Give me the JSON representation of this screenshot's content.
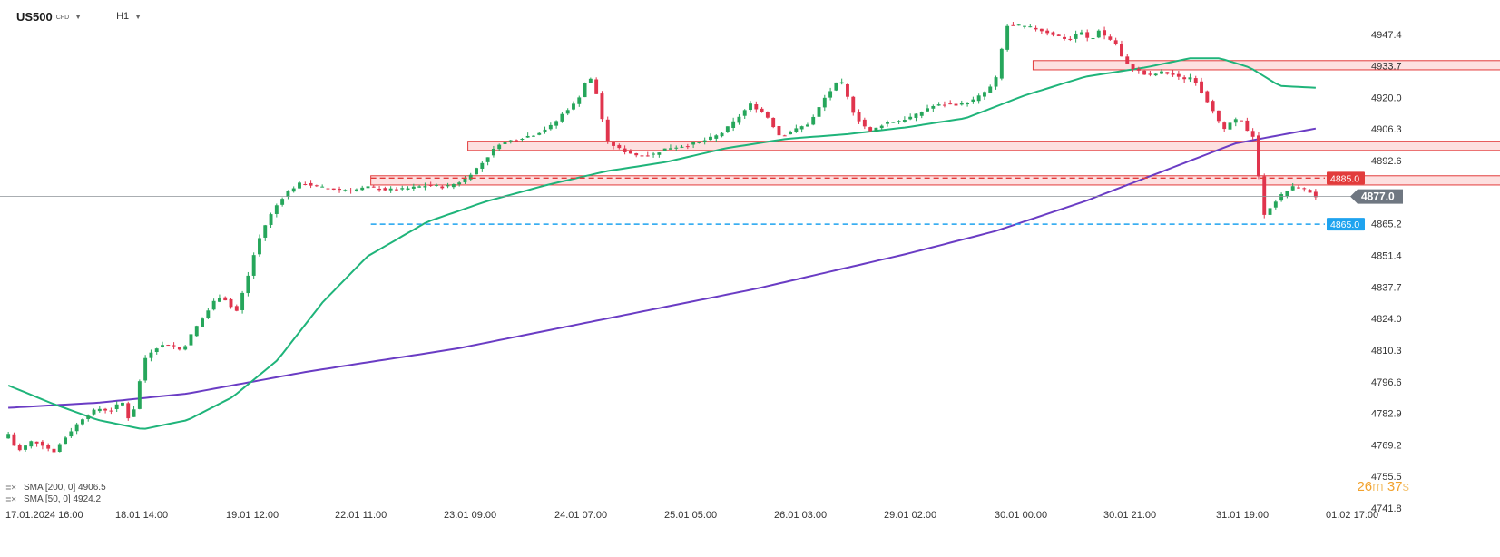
{
  "header": {
    "symbol": "US500",
    "instrument_type": "CFD",
    "timeframe": "H1"
  },
  "indicators": [
    {
      "label": "SMA [200, 0]",
      "value": "4906.5",
      "color": "#6a3cc4"
    },
    {
      "label": "SMA [50, 0]",
      "value": "4924.2",
      "color": "#1fb47a"
    }
  ],
  "countdown": {
    "minutes": "26",
    "m_unit": "m",
    "seconds": "37",
    "s_unit": "s"
  },
  "price_tags": {
    "last": "4877.0",
    "resistance": "4885.0",
    "support": "4865.0"
  },
  "colors": {
    "up": "#26a65b",
    "down": "#e0344d",
    "sma200": "#6a3cc4",
    "sma50": "#1fb47a",
    "zone_fill": "#fcd6d6",
    "zone_stroke": "#e23b3b",
    "support_line": "#1fa3ef",
    "last_tag": "#6f7781"
  },
  "chart_data": {
    "type": "candlestick",
    "y_ticks": [
      "4947.4",
      "4933.7",
      "4920.0",
      "4906.3",
      "4892.6",
      "4865.2",
      "4851.4",
      "4837.7",
      "4824.0",
      "4810.3",
      "4796.6",
      "4782.9",
      "4769.2",
      "4755.5",
      "4741.8"
    ],
    "ylim": [
      4741.8,
      4956
    ],
    "x_ticks": [
      "17.01.2024  16:00",
      "18.01  14:00",
      "19.01  12:00",
      "22.01  11:00",
      "23.01  09:00",
      "24.01  07:00",
      "25.01  05:00",
      "26.01  03:00",
      "29.01  02:00",
      "30.01  00:00",
      "30.01  21:00",
      "31.01  19:00",
      "01.02  17:00"
    ],
    "bar_count": 230,
    "close_anchors": [
      [
        0,
        4774
      ],
      [
        3,
        4766
      ],
      [
        8,
        4771
      ],
      [
        12,
        4769
      ],
      [
        15,
        4766
      ],
      [
        20,
        4774
      ],
      [
        25,
        4781
      ],
      [
        30,
        4785
      ],
      [
        34,
        4784
      ],
      [
        38,
        4788
      ],
      [
        41,
        4778
      ],
      [
        43,
        4792
      ],
      [
        46,
        4808
      ],
      [
        50,
        4812
      ],
      [
        54,
        4813
      ],
      [
        58,
        4810
      ],
      [
        62,
        4819
      ],
      [
        66,
        4826
      ],
      [
        70,
        4834
      ],
      [
        73,
        4832
      ],
      [
        76,
        4826
      ],
      [
        80,
        4842
      ],
      [
        83,
        4856
      ],
      [
        86,
        4865
      ],
      [
        89,
        4872
      ],
      [
        93,
        4879
      ],
      [
        98,
        4883
      ],
      [
        104,
        4881
      ],
      [
        110,
        4880
      ],
      [
        116,
        4880
      ],
      [
        120,
        4881
      ],
      [
        126,
        4880
      ],
      [
        131,
        4880
      ],
      [
        136,
        4881
      ],
      [
        141,
        4882
      ],
      [
        146,
        4881
      ],
      [
        152,
        4884
      ],
      [
        158,
        4891
      ],
      [
        164,
        4900
      ],
      [
        170,
        4902
      ],
      [
        176,
        4904
      ],
      [
        182,
        4908
      ],
      [
        186,
        4914
      ],
      [
        190,
        4918
      ],
      [
        194,
        4930
      ],
      [
        197,
        4920
      ],
      [
        200,
        4901
      ],
      [
        205,
        4897
      ],
      [
        210,
        4895
      ],
      [
        215,
        4895
      ],
      [
        220,
        4898
      ],
      [
        226,
        4899
      ],
      [
        232,
        4901
      ],
      [
        238,
        4904
      ],
      [
        243,
        4910
      ],
      [
        248,
        4917
      ],
      [
        253,
        4913
      ],
      [
        258,
        4903
      ],
      [
        263,
        4906
      ],
      [
        268,
        4909
      ],
      [
        273,
        4920
      ],
      [
        278,
        4928
      ],
      [
        283,
        4912
      ],
      [
        288,
        4905
      ],
      [
        293,
        4909
      ],
      [
        298,
        4910
      ],
      [
        303,
        4912
      ],
      [
        308,
        4916
      ],
      [
        313,
        4917
      ],
      [
        318,
        4917
      ],
      [
        323,
        4919
      ],
      [
        328,
        4924
      ],
      [
        331,
        4930
      ],
      [
        333,
        4951
      ],
      [
        338,
        4951
      ],
      [
        343,
        4950
      ],
      [
        348,
        4948
      ],
      [
        352,
        4946
      ],
      [
        355,
        4945
      ],
      [
        358,
        4949
      ],
      [
        362,
        4944
      ],
      [
        364,
        4950
      ],
      [
        367,
        4946
      ],
      [
        370,
        4944
      ],
      [
        373,
        4935
      ],
      [
        377,
        4932
      ],
      [
        381,
        4929
      ],
      [
        385,
        4931
      ],
      [
        389,
        4930
      ],
      [
        392,
        4928
      ],
      [
        396,
        4929
      ],
      [
        399,
        4922
      ],
      [
        403,
        4914
      ],
      [
        406,
        4905
      ],
      [
        409,
        4910
      ],
      [
        412,
        4910
      ],
      [
        414,
        4906
      ],
      [
        417,
        4902
      ],
      [
        419,
        4867
      ],
      [
        422,
        4873
      ],
      [
        425,
        4877
      ],
      [
        429,
        4881
      ],
      [
        432,
        4881
      ],
      [
        435,
        4879
      ],
      [
        437,
        4877
      ]
    ],
    "series": [
      {
        "name": "SMA [200, 0]",
        "anchors": [
          [
            0,
            4785.3
          ],
          [
            30,
            4787.5
          ],
          [
            60,
            4791.5
          ],
          [
            100,
            4801
          ],
          [
            150,
            4811
          ],
          [
            200,
            4824
          ],
          [
            250,
            4837
          ],
          [
            300,
            4852
          ],
          [
            330,
            4862
          ],
          [
            360,
            4875
          ],
          [
            390,
            4890
          ],
          [
            410,
            4900
          ],
          [
            437,
            4906.5
          ]
        ]
      },
      {
        "name": "SMA [50, 0]",
        "anchors": [
          [
            0,
            4795
          ],
          [
            15,
            4787
          ],
          [
            30,
            4780
          ],
          [
            45,
            4776
          ],
          [
            60,
            4780
          ],
          [
            75,
            4790
          ],
          [
            90,
            4806
          ],
          [
            105,
            4831
          ],
          [
            120,
            4851
          ],
          [
            140,
            4866
          ],
          [
            160,
            4875
          ],
          [
            180,
            4882
          ],
          [
            200,
            4888
          ],
          [
            220,
            4892
          ],
          [
            240,
            4898
          ],
          [
            260,
            4902
          ],
          [
            280,
            4904
          ],
          [
            300,
            4907
          ],
          [
            320,
            4911
          ],
          [
            340,
            4921
          ],
          [
            360,
            4929
          ],
          [
            380,
            4933
          ],
          [
            395,
            4937
          ],
          [
            405,
            4937
          ],
          [
            415,
            4933
          ],
          [
            425,
            4925
          ],
          [
            437,
            4924.2
          ]
        ]
      }
    ],
    "zones": [
      {
        "from_bar": 180,
        "to_bar": 282,
        "low": 4932,
        "high": 4936
      },
      {
        "from_bar": 81,
        "to_bar": 286,
        "low": 4897,
        "high": 4901
      },
      {
        "from_bar": 64,
        "to_bar": 301,
        "low": 4882,
        "high": 4886
      }
    ],
    "horizontal_lines": [
      {
        "price": 4885.0,
        "style": "dashed",
        "from_bar": 64,
        "to_bar": 301
      },
      {
        "price": 4865.0,
        "style": "dashed",
        "from_bar": 64,
        "to_bar": 301
      },
      {
        "price": 4877.0,
        "style": "solid",
        "from_bar": 0,
        "to_bar": 301
      }
    ],
    "grid": false
  }
}
